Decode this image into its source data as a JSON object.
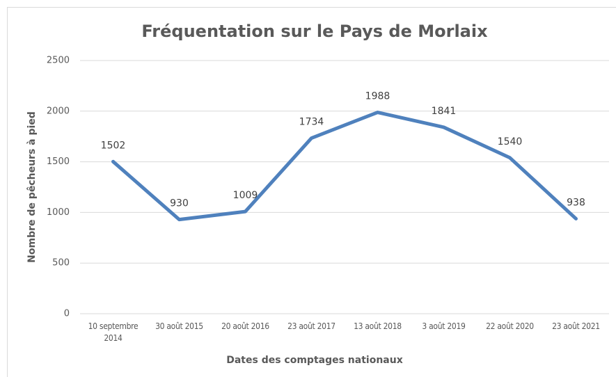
{
  "chart_data": {
    "type": "line",
    "title": "Fréquentation sur le Pays de Morlaix",
    "x_label": "Dates des comptages nationaux",
    "y_label": "Nombre de pêcheurs à pied",
    "categories": [
      "10 septembre 2014",
      "30 août 2015",
      "20 août 2016",
      "23 août 2017",
      "13 août 2018",
      "3 août 2019",
      "22 août 2020",
      "23 août 2021"
    ],
    "values": [
      1502,
      930,
      1009,
      1734,
      1988,
      1841,
      1540,
      938
    ],
    "color": "#4f81bd",
    "ylim": [
      0,
      2500
    ],
    "yticks": [
      0,
      500,
      1000,
      1500,
      2000,
      2500
    ],
    "grid": true
  }
}
